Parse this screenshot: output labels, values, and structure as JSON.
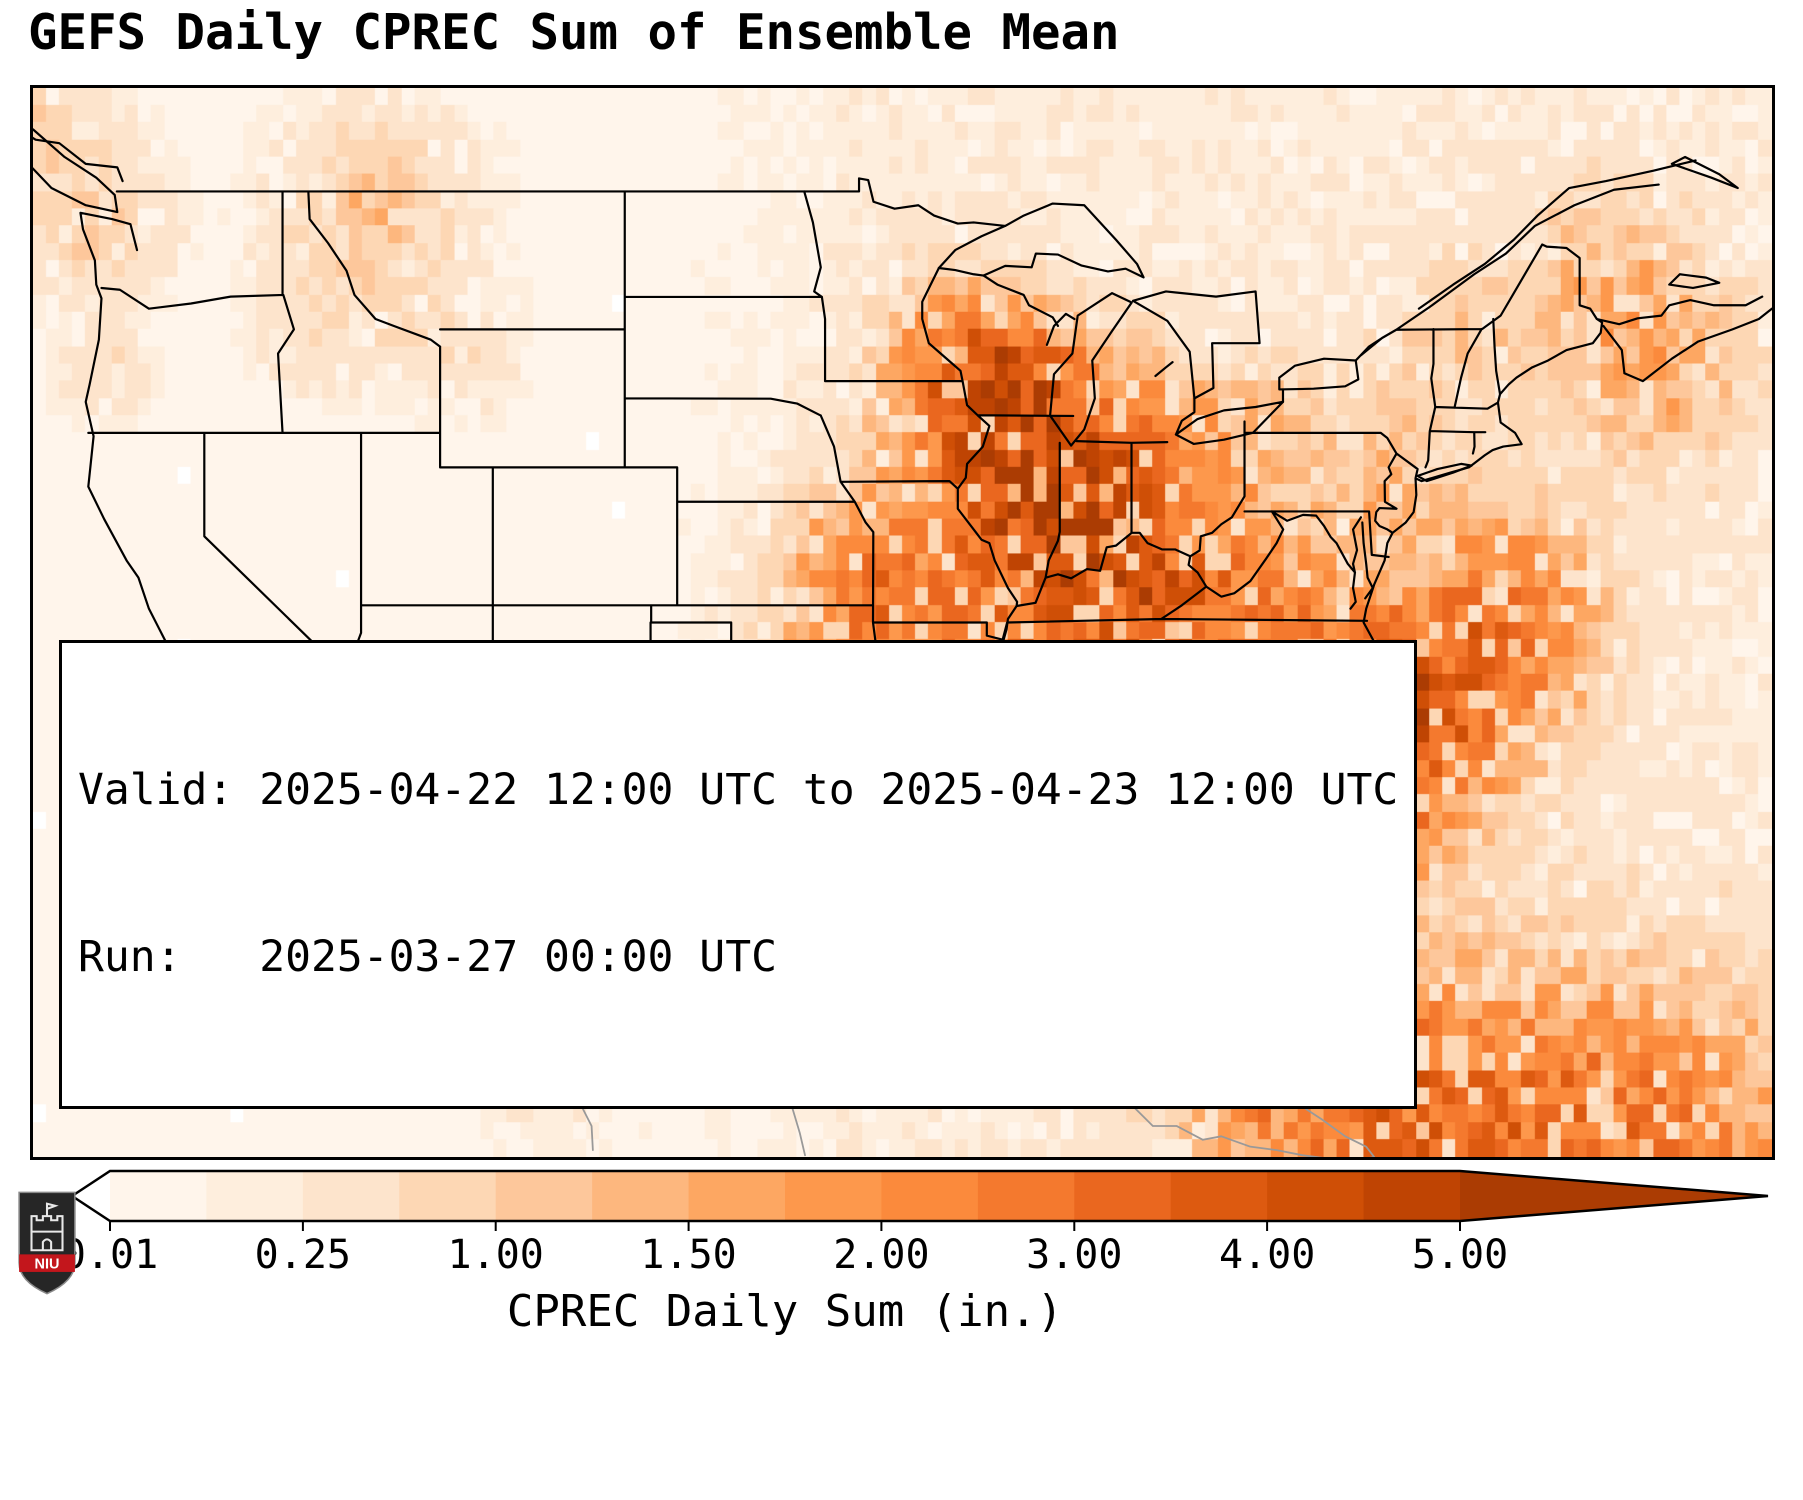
{
  "title": "GEFS Daily CPREC Sum of Ensemble Mean",
  "map": {
    "info_box": {
      "valid_label": "Valid:",
      "valid_value": "2025-04-22 12:00 UTC to 2025-04-23 12:00 UTC",
      "run_label": "Run:",
      "run_value": "2025-03-27 00:00 UTC"
    },
    "border_color": "#000000",
    "foreign_coast_color": "#999999"
  },
  "colorbar": {
    "label": "CPREC Daily Sum (in.)",
    "ticks": [
      "0.01",
      "0.25",
      "1.00",
      "1.50",
      "2.00",
      "3.00",
      "4.00",
      "5.00"
    ],
    "under_color": "#ffffff",
    "over_color": "#ab3c03",
    "segment_colors": [
      "#fff5eb",
      "#feeedd",
      "#fde4cc",
      "#fdd7b4",
      "#fdc79b",
      "#fdb77e",
      "#fda762",
      "#fd984c",
      "#fb8a3c",
      "#f4792e",
      "#ea671f",
      "#dd5a10",
      "#cf4f06",
      "#bf4403"
    ]
  },
  "logo": {
    "text": "NIU"
  }
}
